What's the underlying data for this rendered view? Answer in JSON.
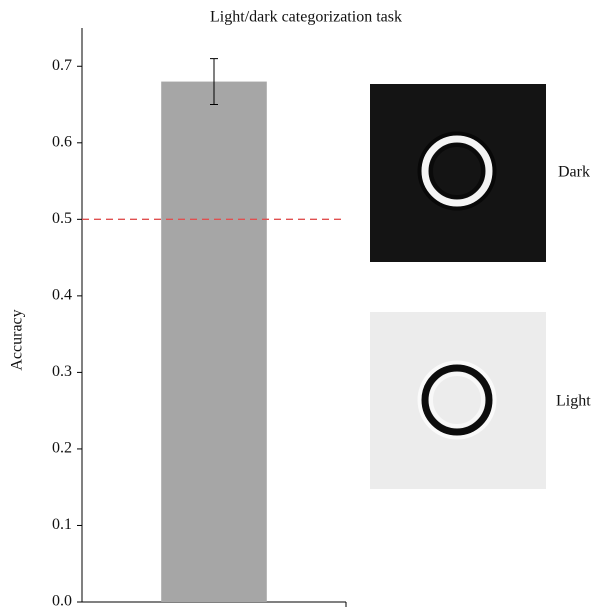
{
  "chart_data": {
    "type": "bar",
    "title": "Light/dark categorization task",
    "y_label": "Accuracy",
    "categories": [
      null
    ],
    "values": [
      0.68
    ],
    "errors": [
      0.03
    ],
    "color": "#a6a6a6",
    "ylim": [
      0,
      0.75
    ],
    "yticks": [
      {
        "value": 0,
        "label": "0.0"
      },
      0.1,
      0.2,
      0.3,
      0.4,
      0.5,
      0.6,
      0.7
    ],
    "hline": {
      "value": 0.5,
      "color": "#e05050"
    },
    "annotations": [
      "Dark",
      "Light"
    ]
  }
}
